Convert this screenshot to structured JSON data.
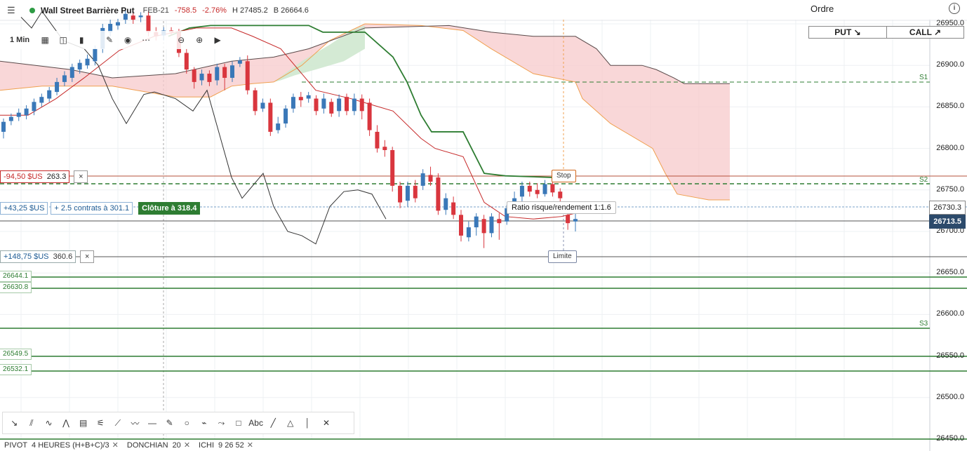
{
  "header": {
    "menu_icon": "hamburger-icon",
    "status_color": "#2e9b44",
    "instrument": "Wall Street Barrière Put",
    "expiry": "FEB-21",
    "change": "-758.5",
    "change_pct": "-2.76%",
    "high": "H 27485.2",
    "low": "B 26664.6"
  },
  "toolbar": {
    "timeframe": "1 Min",
    "icons": [
      "candle-type-icon",
      "indicators-icon",
      "bar-chart-icon",
      "pencil-icon",
      "eye-icon",
      "more-icon",
      "zoom-out-icon",
      "zoom-in-icon",
      "play-icon"
    ]
  },
  "order_panel": {
    "title": "Ordre",
    "info_icon": "info-icon",
    "put_label": "PUT ↘",
    "call_label": "CALL ↗"
  },
  "y_axis": {
    "labels": [
      "26950.0",
      "26900.0",
      "26850.0",
      "26800.0",
      "26750.0",
      "26700.0",
      "26650.0",
      "26600.0",
      "26550.0",
      "26500.0",
      "26450.0"
    ]
  },
  "price_tags": {
    "crosshair": "26730.3",
    "current": "26713.5"
  },
  "pivots": {
    "s1": "S1",
    "s2": "S2",
    "s3": "S3"
  },
  "positions": {
    "loss_text": "-94,50 $US",
    "loss_value": "263.3",
    "gain_text": "+43,25 $US",
    "gain_extra": "+ 2.5 contrats à 301.1",
    "close_label": "Clôture à 318.4",
    "gain2_text": "+148,75 $US",
    "gain2_value": "360.6",
    "close_icon": "×"
  },
  "levels": {
    "l1": "26644.1",
    "l2": "26630.8",
    "l3": "26549.5",
    "l4": "26532.1"
  },
  "annotations": {
    "stop": "Stop",
    "limit": "Limite",
    "ratio": "Ratio risque/rendement 1:1.6"
  },
  "drawing_tools": [
    "trend-line-icon",
    "parallel-channel-icon",
    "zigzag-icon",
    "pattern-icon",
    "fib-retracement-icon",
    "gann-icon",
    "fan-icon",
    "elliott-wave-icon",
    "horizontal-line-icon",
    "ruler-icon",
    "circle-icon",
    "brush-icon",
    "path-icon",
    "rectangle-icon",
    "text-icon",
    "line-icon",
    "triangle-icon",
    "vertical-line-icon",
    "close-icon"
  ],
  "drawing_tool_glyphs": [
    "↘",
    "⫽",
    "∿",
    "⋀",
    "▤",
    "⚟",
    "⟋",
    "〰",
    "—",
    "✎",
    "○",
    "⌁",
    "⤳",
    "□",
    "Abc",
    "╱",
    "△",
    "│",
    "✕"
  ],
  "indicators": [
    {
      "name": "PIVOT",
      "params": "4 HEURES (H+B+C)/3"
    },
    {
      "name": "DONCHIAN",
      "params": "20"
    },
    {
      "name": "ICHI",
      "params": "9  26  52"
    }
  ],
  "colors": {
    "bull": "#3a78b8",
    "bear": "#d9363e",
    "cloud_red": "#f7c9cb",
    "cloud_green": "#cfe8cf",
    "kijun": "#2e7d32",
    "tenkan": "#c62828",
    "pivot": "#2e7d32"
  },
  "chart_data": {
    "type": "candlestick",
    "ylim": [
      26450,
      26950
    ],
    "candles": [
      {
        "o": 26820,
        "c": 26832,
        "h": 26836,
        "l": 26812
      },
      {
        "o": 26833,
        "c": 26838,
        "h": 26842,
        "l": 26828
      },
      {
        "o": 26838,
        "c": 26843,
        "h": 26848,
        "l": 26833
      },
      {
        "o": 26840,
        "c": 26848,
        "h": 26852,
        "l": 26835
      },
      {
        "o": 26845,
        "c": 26856,
        "h": 26860,
        "l": 26840
      },
      {
        "o": 26855,
        "c": 26862,
        "h": 26866,
        "l": 26850
      },
      {
        "o": 26860,
        "c": 26870,
        "h": 26874,
        "l": 26856
      },
      {
        "o": 26868,
        "c": 26880,
        "h": 26885,
        "l": 26864
      },
      {
        "o": 26880,
        "c": 26888,
        "h": 26893,
        "l": 26875
      },
      {
        "o": 26885,
        "c": 26898,
        "h": 26902,
        "l": 26880
      },
      {
        "o": 26895,
        "c": 26903,
        "h": 26907,
        "l": 26890
      },
      {
        "o": 26900,
        "c": 26908,
        "h": 26913,
        "l": 26896
      },
      {
        "o": 26905,
        "c": 26920,
        "h": 26924,
        "l": 26900
      },
      {
        "o": 26920,
        "c": 26945,
        "h": 26950,
        "l": 26915
      },
      {
        "o": 26940,
        "c": 26950,
        "h": 26955,
        "l": 26935
      },
      {
        "o": 26948,
        "c": 26952,
        "h": 26956,
        "l": 26943
      },
      {
        "o": 26955,
        "c": 26962,
        "h": 26966,
        "l": 26950
      },
      {
        "o": 26960,
        "c": 26955,
        "h": 26966,
        "l": 26950
      },
      {
        "o": 26958,
        "c": 26960,
        "h": 26964,
        "l": 26952
      },
      {
        "o": 26960,
        "c": 26940,
        "h": 26965,
        "l": 26935
      },
      {
        "o": 26940,
        "c": 26935,
        "h": 26946,
        "l": 26930
      },
      {
        "o": 26936,
        "c": 26942,
        "h": 26946,
        "l": 26930
      },
      {
        "o": 26942,
        "c": 26940,
        "h": 26946,
        "l": 26936
      },
      {
        "o": 26940,
        "c": 26915,
        "h": 26944,
        "l": 26910
      },
      {
        "o": 26915,
        "c": 26895,
        "h": 26920,
        "l": 26890
      },
      {
        "o": 26895,
        "c": 26880,
        "h": 26898,
        "l": 26872
      },
      {
        "o": 26882,
        "c": 26890,
        "h": 26895,
        "l": 26876
      },
      {
        "o": 26890,
        "c": 26880,
        "h": 26894,
        "l": 26875
      },
      {
        "o": 26882,
        "c": 26898,
        "h": 26902,
        "l": 26876
      },
      {
        "o": 26898,
        "c": 26885,
        "h": 26902,
        "l": 26870
      },
      {
        "o": 26885,
        "c": 26900,
        "h": 26905,
        "l": 26880
      },
      {
        "o": 26902,
        "c": 26906,
        "h": 26910,
        "l": 26898
      },
      {
        "o": 26905,
        "c": 26870,
        "h": 26912,
        "l": 26865
      },
      {
        "o": 26870,
        "c": 26845,
        "h": 26873,
        "l": 26840
      },
      {
        "o": 26848,
        "c": 26855,
        "h": 26860,
        "l": 26844
      },
      {
        "o": 26855,
        "c": 26820,
        "h": 26860,
        "l": 26815
      },
      {
        "o": 26822,
        "c": 26830,
        "h": 26838,
        "l": 26818
      },
      {
        "o": 26830,
        "c": 26848,
        "h": 26852,
        "l": 26825
      },
      {
        "o": 26848,
        "c": 26862,
        "h": 26866,
        "l": 26843
      },
      {
        "o": 26862,
        "c": 26858,
        "h": 26868,
        "l": 26850
      },
      {
        "o": 26860,
        "c": 26864,
        "h": 26868,
        "l": 26855
      },
      {
        "o": 26860,
        "c": 26845,
        "h": 26864,
        "l": 26840
      },
      {
        "o": 26848,
        "c": 26860,
        "h": 26866,
        "l": 26842
      },
      {
        "o": 26856,
        "c": 26842,
        "h": 26860,
        "l": 26838
      },
      {
        "o": 26845,
        "c": 26860,
        "h": 26865,
        "l": 26838
      },
      {
        "o": 26862,
        "c": 26845,
        "h": 26866,
        "l": 26840
      },
      {
        "o": 26845,
        "c": 26860,
        "h": 26866,
        "l": 26840
      },
      {
        "o": 26860,
        "c": 26845,
        "h": 26865,
        "l": 26835
      },
      {
        "o": 26855,
        "c": 26822,
        "h": 26860,
        "l": 26815
      },
      {
        "o": 26820,
        "c": 26800,
        "h": 26828,
        "l": 26795
      },
      {
        "o": 26802,
        "c": 26798,
        "h": 26810,
        "l": 26790
      },
      {
        "o": 26798,
        "c": 26755,
        "h": 26802,
        "l": 26748
      },
      {
        "o": 26755,
        "c": 26735,
        "h": 26760,
        "l": 26728
      },
      {
        "o": 26737,
        "c": 26755,
        "h": 26760,
        "l": 26730
      },
      {
        "o": 26755,
        "c": 26740,
        "h": 26762,
        "l": 26735
      },
      {
        "o": 26755,
        "c": 26770,
        "h": 26775,
        "l": 26750
      },
      {
        "o": 26768,
        "c": 26760,
        "h": 26778,
        "l": 26755
      },
      {
        "o": 26765,
        "c": 26725,
        "h": 26770,
        "l": 26720
      },
      {
        "o": 26726,
        "c": 26740,
        "h": 26746,
        "l": 26720
      },
      {
        "o": 26735,
        "c": 26720,
        "h": 26742,
        "l": 26715
      },
      {
        "o": 26720,
        "c": 26695,
        "h": 26726,
        "l": 26688
      },
      {
        "o": 26693,
        "c": 26705,
        "h": 26712,
        "l": 26688
      },
      {
        "o": 26705,
        "c": 26718,
        "h": 26722,
        "l": 26695
      },
      {
        "o": 26715,
        "c": 26698,
        "h": 26720,
        "l": 26680
      },
      {
        "o": 26698,
        "c": 26718,
        "h": 26722,
        "l": 26693
      },
      {
        "o": 26715,
        "c": 26710,
        "h": 26722,
        "l": 26690
      },
      {
        "o": 26712,
        "c": 26728,
        "h": 26732,
        "l": 26708
      },
      {
        "o": 26730,
        "c": 26740,
        "h": 26748,
        "l": 26725
      },
      {
        "o": 26742,
        "c": 26755,
        "h": 26760,
        "l": 26736
      },
      {
        "o": 26755,
        "c": 26748,
        "h": 26760,
        "l": 26742
      },
      {
        "o": 26750,
        "c": 26745,
        "h": 26758,
        "l": 26740
      },
      {
        "o": 26745,
        "c": 26757,
        "h": 26762,
        "l": 26742
      },
      {
        "o": 26757,
        "c": 26747,
        "h": 26760,
        "l": 26742
      },
      {
        "o": 26748,
        "c": 26740,
        "h": 26752,
        "l": 26735
      },
      {
        "o": 26720,
        "c": 26710,
        "h": 26727,
        "l": 26702
      },
      {
        "o": 26712,
        "c": 26715,
        "h": 26722,
        "l": 26700
      }
    ]
  }
}
